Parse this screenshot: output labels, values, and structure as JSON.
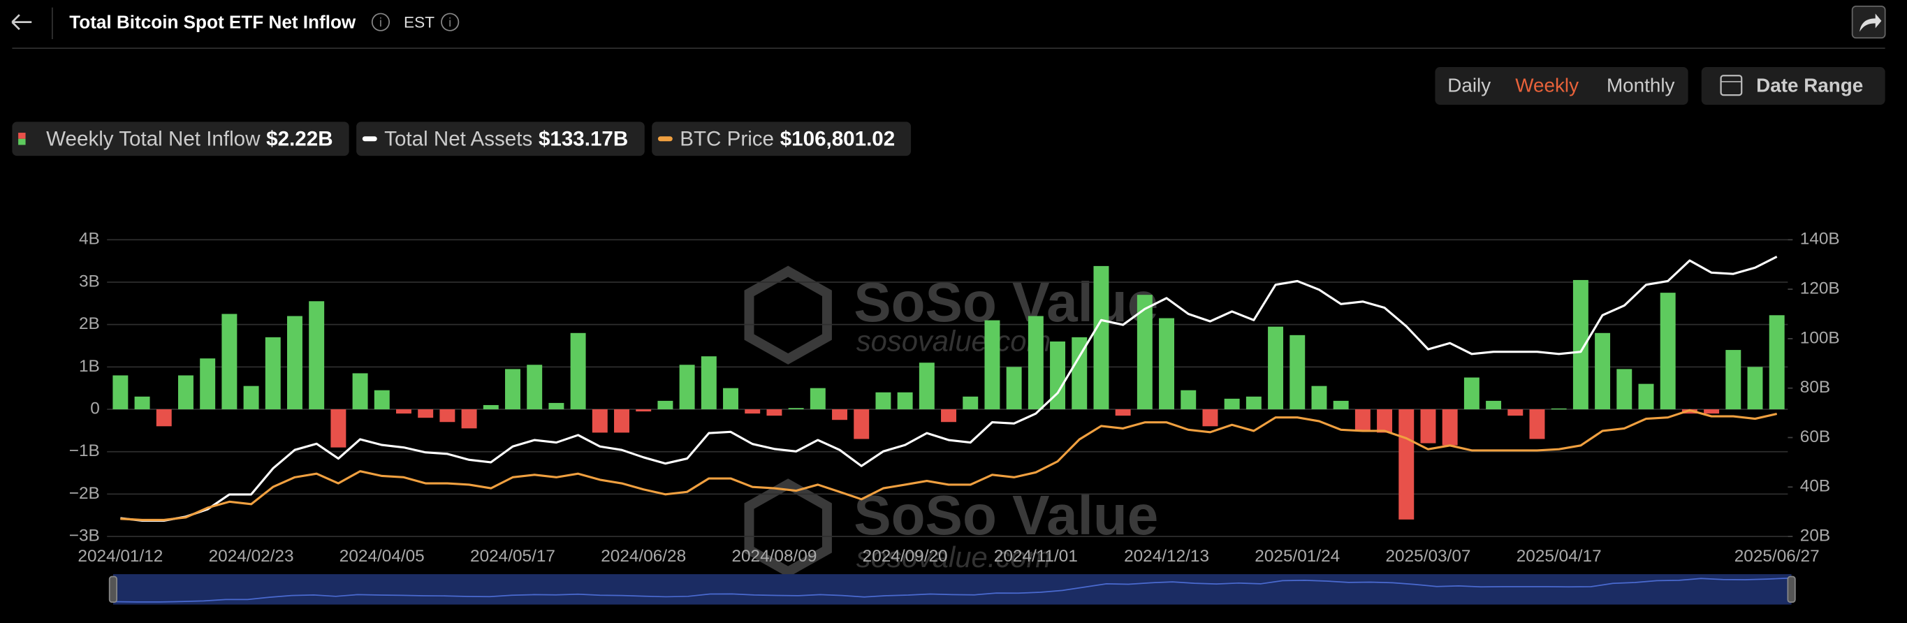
{
  "header": {
    "title": "Total Bitcoin Spot ETF Net Inflow",
    "timezone": "EST"
  },
  "controls": {
    "periods": [
      "Daily",
      "Weekly",
      "Monthly"
    ],
    "active": 1,
    "date_range": "Date Range"
  },
  "watermark": {
    "brand": "SoSo Value",
    "site": "sosovalue.com"
  },
  "chart_data": {
    "type": "bar",
    "categories": [
      "2024/01/12",
      null,
      null,
      null,
      null,
      null,
      "2024/02/23",
      null,
      null,
      null,
      null,
      null,
      "2024/04/05",
      null,
      null,
      null,
      null,
      null,
      "2024/05/17",
      null,
      null,
      null,
      null,
      null,
      "2024/06/28",
      null,
      null,
      null,
      null,
      null,
      "2024/08/09",
      null,
      null,
      null,
      null,
      null,
      "2024/09/20",
      null,
      null,
      null,
      null,
      null,
      "2024/11/01",
      null,
      null,
      null,
      null,
      null,
      "2024/12/13",
      null,
      null,
      null,
      null,
      null,
      "2025/01/24",
      null,
      null,
      null,
      null,
      null,
      "2025/03/07",
      null,
      null,
      null,
      null,
      null,
      "2025/04/17",
      null,
      null,
      null,
      null,
      null,
      null,
      null,
      null,
      null,
      "2025/06/27"
    ],
    "series": [
      {
        "name": "Weekly Total Net Inflow",
        "latest_label": "$2.22B",
        "type": "bar",
        "color": "#5ecb5e",
        "negative_color": "#e8514a",
        "values": [
          0.8,
          0.3,
          -0.4,
          0.8,
          1.2,
          2.25,
          0.55,
          1.7,
          2.2,
          2.55,
          -0.9,
          0.85,
          0.45,
          -0.1,
          -0.2,
          -0.3,
          -0.45,
          0.1,
          0.95,
          1.05,
          0.15,
          1.8,
          -0.55,
          -0.55,
          -0.05,
          0.2,
          1.05,
          1.25,
          0.5,
          -0.1,
          -0.15,
          0.03,
          0.5,
          -0.25,
          -0.7,
          0.4,
          0.4,
          1.1,
          -0.3,
          0.3,
          2.1,
          1.0,
          2.2,
          1.6,
          1.7,
          3.38,
          -0.15,
          2.7,
          2.15,
          0.45,
          -0.4,
          0.25,
          0.3,
          1.95,
          1.75,
          0.55,
          0.2,
          -0.5,
          -0.55,
          -2.6,
          -0.8,
          -0.85,
          0.75,
          0.2,
          -0.15,
          -0.7,
          0.02,
          3.05,
          1.8,
          0.95,
          0.6,
          2.75,
          -0.1,
          -0.1,
          1.4,
          1.0,
          2.22
        ]
      },
      {
        "name": "Total Net Assets",
        "latest_label": "$133.17B",
        "type": "line",
        "axis": "y2",
        "color": "#ffffff",
        "values": [
          27.4,
          26.4,
          26.4,
          28,
          31,
          37,
          37,
          47.5,
          55,
          57.5,
          51.5,
          59.3,
          57,
          56,
          54,
          53.4,
          51,
          50,
          56.4,
          59,
          58,
          61,
          56.4,
          55,
          52,
          49.5,
          51.5,
          61.8,
          62.3,
          57.4,
          55.4,
          54.4,
          59,
          55,
          48.5,
          54.4,
          57,
          61.8,
          59,
          58,
          66.2,
          65.7,
          69.7,
          78,
          92.8,
          107.5,
          105.6,
          112,
          116.4,
          110,
          107,
          111,
          107.5,
          121.8,
          123.3,
          119.8,
          114,
          115,
          112.5,
          105,
          95.7,
          98.2,
          93.8,
          94.7,
          94.7,
          94.7,
          93.8,
          94.7,
          109.5,
          113.4,
          121.8,
          123.3,
          131.6,
          126.7,
          126.2,
          128.7,
          133.17
        ]
      },
      {
        "name": "BTC Price",
        "latest_label": "$106,801.02",
        "type": "line",
        "axis": "y3",
        "color": "#f0a040",
        "values": [
          42800,
          42100,
          42100,
          43600,
          49500,
          53200,
          51700,
          62200,
          68100,
          70300,
          64400,
          71800,
          68900,
          68100,
          64400,
          64400,
          63600,
          61400,
          68100,
          69600,
          68100,
          70300,
          66600,
          64400,
          60700,
          57700,
          59200,
          67400,
          67400,
          62200,
          61400,
          59900,
          63600,
          59200,
          54700,
          61400,
          63600,
          65900,
          63600,
          63600,
          69600,
          68100,
          71100,
          77800,
          91200,
          99400,
          97900,
          101600,
          101600,
          97100,
          95600,
          100100,
          96400,
          104600,
          104600,
          102300,
          97100,
          96400,
          96400,
          91900,
          85200,
          87500,
          84500,
          84500,
          84500,
          84500,
          85200,
          87500,
          96400,
          97900,
          103800,
          104600,
          109000,
          105300,
          105300,
          103800,
          106801.02
        ]
      }
    ],
    "ylim": [
      -3,
      4
    ],
    "yticks": [
      {
        "value": -3,
        "label": "−3B"
      },
      {
        "value": -2,
        "label": "−2B"
      },
      {
        "value": -1,
        "label": "−1B"
      },
      0,
      {
        "value": 1,
        "label": "1B"
      },
      {
        "value": 2,
        "label": "2B"
      },
      {
        "value": 3,
        "label": "3B"
      },
      {
        "value": 4,
        "label": "4B"
      }
    ],
    "y2lim": [
      20,
      140
    ],
    "y2ticks": [
      {
        "value": 20,
        "label": "20B"
      },
      {
        "value": 40,
        "label": "40B"
      },
      {
        "value": 60,
        "label": "60B"
      },
      {
        "value": 80,
        "label": "80B"
      },
      {
        "value": 100,
        "label": "100B"
      },
      {
        "value": 120,
        "label": "120B"
      },
      {
        "value": 140,
        "label": "140B"
      }
    ],
    "y3lim": [
      32000,
      213000
    ],
    "grid": true
  }
}
